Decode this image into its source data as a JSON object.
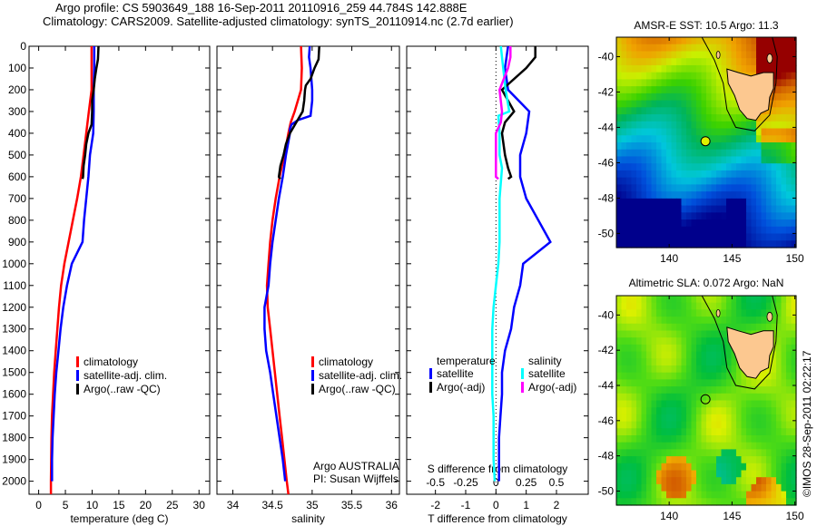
{
  "header": {
    "line1": "Argo profile: CS 5903649_188 16-Sep-2011 20110916_259 44.784S 142.888E",
    "line2": "Climatology: CARS2009. Satellite-adjusted climatology: synTS_20110914.nc (2.7d earlier)"
  },
  "credit": "©IMOS 28-Sep-2011 02:22:17",
  "colors": {
    "climatology": "#ff0000",
    "satellite": "#0000ff",
    "argo": "#000000",
    "salinity_satellite": "#00ffff",
    "salinity_argo": "#ff00ff",
    "land": "#fcc890"
  },
  "chart_data": [
    {
      "type": "line",
      "name": "temperature-profile",
      "xlabel": "temperature (deg C)",
      "ylabel": "",
      "xlim": [
        -1.8,
        32
      ],
      "ylim": [
        2060,
        0
      ],
      "xticks": [
        0,
        5,
        10,
        15,
        20,
        25,
        30
      ],
      "yticks": [
        0,
        100,
        200,
        300,
        400,
        500,
        600,
        700,
        800,
        900,
        1000,
        1100,
        1200,
        1300,
        1400,
        1500,
        1600,
        1700,
        1800,
        1900,
        2000
      ],
      "legend": [
        "climatology",
        "satellite-adj. clim.",
        "Argo(..raw -QC)"
      ],
      "legend_placement": "center-left",
      "series": [
        {
          "name": "climatology",
          "color": "#ff0000",
          "depth": [
            0,
            100,
            200,
            300,
            400,
            500,
            600,
            700,
            800,
            900,
            1000,
            1100,
            1200,
            1300,
            1400,
            1500,
            1600,
            1700,
            1800,
            1900,
            2000,
            2060
          ],
          "values": [
            9.9,
            9.9,
            9.9,
            9.4,
            8.9,
            8.4,
            7.9,
            7.2,
            6.4,
            5.6,
            4.8,
            4.2,
            3.8,
            3.5,
            3.2,
            2.9,
            2.7,
            2.5,
            2.4,
            2.35,
            2.3,
            2.3
          ]
        },
        {
          "name": "satellite-adj. clim.",
          "color": "#0000ff",
          "depth": [
            0,
            100,
            200,
            300,
            400,
            500,
            600,
            700,
            800,
            900,
            950,
            1000,
            1100,
            1200,
            1300,
            1400,
            1500,
            1600,
            1700,
            1800,
            1900,
            2000
          ],
          "values": [
            10.4,
            10.4,
            10.3,
            10.3,
            10.2,
            9.6,
            9.3,
            8.9,
            8.5,
            8.2,
            7.2,
            6.2,
            5.3,
            4.6,
            4.1,
            3.7,
            3.3,
            3.0,
            2.8,
            2.6,
            2.5,
            2.5
          ]
        },
        {
          "name": "Argo(..raw -QC)",
          "color": "#000000",
          "depth": [
            0,
            60,
            100,
            150,
            200,
            250,
            300,
            360,
            400,
            450,
            500,
            550,
            600,
            610
          ],
          "values": [
            11.2,
            11.1,
            10.8,
            10.5,
            10.3,
            10.0,
            10.0,
            9.9,
            9.3,
            8.9,
            8.7,
            8.4,
            8.3,
            8.2
          ]
        }
      ]
    },
    {
      "type": "line",
      "name": "salinity-profile",
      "xlabel": "salinity",
      "xlim": [
        33.8,
        36.1
      ],
      "ylim": [
        2060,
        0
      ],
      "xticks": [
        34,
        34.5,
        35,
        35.5,
        36
      ],
      "legend": [
        "climatology",
        "satellite-adj. clim.",
        "Argo(..raw -QC)"
      ],
      "legend_placement": "center-right",
      "annotation": [
        "Argo AUSTRALIA",
        "PI: Susan Wijffels"
      ],
      "series": [
        {
          "name": "climatology",
          "color": "#ff0000",
          "depth": [
            0,
            100,
            200,
            250,
            300,
            350,
            400,
            500,
            600,
            700,
            800,
            900,
            1000,
            1100,
            1200,
            1300,
            1400,
            1500,
            1600,
            1700,
            1800,
            1900,
            2000,
            2060
          ],
          "values": [
            34.86,
            34.87,
            34.86,
            34.82,
            34.78,
            34.73,
            34.7,
            34.65,
            34.59,
            34.54,
            34.5,
            34.47,
            34.45,
            34.43,
            34.44,
            34.47,
            34.5,
            34.53,
            34.56,
            34.59,
            34.62,
            34.65,
            34.68,
            34.7
          ]
        },
        {
          "name": "satellite-adj. clim.",
          "color": "#0000ff",
          "depth": [
            0,
            50,
            100,
            150,
            200,
            250,
            320,
            340,
            360,
            380,
            400,
            500,
            600,
            700,
            800,
            900,
            1000,
            1100,
            1200,
            1300,
            1400,
            1500,
            1600,
            1700,
            1800,
            1900,
            2000
          ],
          "values": [
            34.97,
            34.96,
            34.98,
            34.99,
            35.0,
            35.0,
            34.98,
            34.82,
            34.74,
            34.72,
            34.72,
            34.67,
            34.63,
            34.58,
            34.54,
            34.5,
            34.47,
            34.45,
            34.4,
            34.4,
            34.42,
            34.47,
            34.51,
            34.55,
            34.59,
            34.63,
            34.66
          ]
        },
        {
          "name": "Argo(..raw -QC)",
          "color": "#000000",
          "depth": [
            0,
            60,
            100,
            150,
            180,
            200,
            250,
            300,
            350,
            400,
            450,
            500,
            550,
            600,
            610
          ],
          "values": [
            35.09,
            35.08,
            35.03,
            34.98,
            34.92,
            34.91,
            34.9,
            34.88,
            34.8,
            34.72,
            34.67,
            34.64,
            34.6,
            34.58,
            34.6
          ]
        }
      ]
    },
    {
      "type": "line",
      "name": "difference-profile",
      "xlabel": "T difference from climatology",
      "xlabel_top": "S difference from climatology",
      "xlim": [
        -2.95,
        3.05
      ],
      "ylim": [
        2060,
        0
      ],
      "xticks": [
        -2,
        -1,
        0,
        1,
        2
      ],
      "xticks_secondary": [
        -0.5,
        -0.25,
        0,
        0.25,
        0.5
      ],
      "legend": {
        "temperature": [
          "satellite",
          "Argo(-adj)"
        ],
        "salinity": [
          "satellite",
          "Argo(-adj)"
        ]
      },
      "legend_placement": "center",
      "series": [
        {
          "name": "temperature satellite",
          "color": "#0000ff",
          "depth": [
            0,
            100,
            200,
            300,
            400,
            500,
            600,
            700,
            800,
            900,
            1000,
            1100,
            1200,
            1300,
            1400,
            1500,
            1600,
            1700,
            1800,
            1900,
            2000
          ],
          "values": [
            0.4,
            0.3,
            0.4,
            1.1,
            1.0,
            0.8,
            0.8,
            1.0,
            1.4,
            1.8,
            0.9,
            0.8,
            0.6,
            0.5,
            0.3,
            0.2,
            0.2,
            0.15,
            0.1,
            0.1,
            0.1
          ]
        },
        {
          "name": "temperature Argo(-adj)",
          "color": "#000000",
          "depth": [
            0,
            50,
            100,
            200,
            300,
            350,
            400,
            500,
            560,
            600,
            610
          ],
          "values": [
            1.3,
            1.3,
            1.0,
            0.2,
            0.6,
            0.3,
            0.2,
            0.3,
            0.4,
            0.5,
            0.4
          ]
        },
        {
          "name": "salinity satellite",
          "color": "#00ffff",
          "depth": [
            0,
            100,
            200,
            300,
            320,
            400,
            500,
            560,
            700,
            800,
            900,
            1000,
            1100,
            1200,
            1300,
            1400,
            1500,
            1600,
            1700,
            1800,
            1900,
            2000
          ],
          "values": [
            0.04,
            0.06,
            0.08,
            0.11,
            0.02,
            0.03,
            0.03,
            0.05,
            0.03,
            0.03,
            0.03,
            0.02,
            0.0,
            -0.02,
            -0.03,
            -0.03,
            -0.03,
            -0.03,
            -0.02,
            -0.02,
            -0.02,
            -0.01
          ]
        },
        {
          "name": "salinity Argo(-adj)",
          "color": "#ff00ff",
          "depth": [
            0,
            50,
            100,
            200,
            300,
            350,
            400,
            500,
            600,
            610
          ],
          "values": [
            0.12,
            0.12,
            0.1,
            0.03,
            0.05,
            0.04,
            0.0,
            0.0,
            0.0,
            0.02
          ]
        }
      ]
    },
    {
      "type": "heatmap",
      "name": "sst-map",
      "title": "AMSR-E SST: 10.5 Argo: 11.3",
      "xlim": [
        135.8,
        150.1
      ],
      "ylim": [
        -50.8,
        -38.9
      ],
      "xticks": [
        140,
        145,
        150
      ],
      "yticks": [
        -40,
        -42,
        -44,
        -46,
        -48,
        -50
      ],
      "profile_location": {
        "lon": 142.888,
        "lat": -44.784
      }
    },
    {
      "type": "heatmap",
      "name": "sla-map",
      "title": "Altimetric SLA: 0.072 Argo: NaN",
      "xlim": [
        135.8,
        150.1
      ],
      "ylim": [
        -50.8,
        -38.9
      ],
      "xticks": [
        140,
        145,
        150
      ],
      "yticks": [
        -40,
        -42,
        -44,
        -46,
        -48,
        -50
      ],
      "profile_location": {
        "lon": 142.888,
        "lat": -44.784
      }
    }
  ]
}
